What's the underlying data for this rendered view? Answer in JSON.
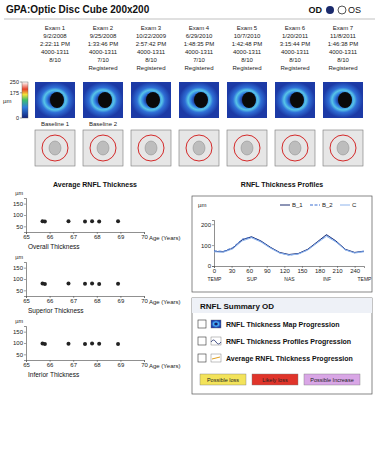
{
  "header": {
    "title": "GPA:Optic Disc Cube 200x200",
    "od": "OD",
    "os": "OS"
  },
  "exams": [
    {
      "label": "Exam 1",
      "date": "9/2/2008",
      "time": "2:22:11 PM",
      "id": "4000-1311",
      "signal": "8/10"
    },
    {
      "label": "Exam 2",
      "date": "9/25/2008",
      "time": "1:33:46 PM",
      "id": "4000-1311",
      "signal": "7/10",
      "status": "Registered"
    },
    {
      "label": "Exam 3",
      "date": "10/22/2009",
      "time": "2:57:42 PM",
      "id": "4000-1311",
      "signal": "8/10",
      "status": "Registered"
    },
    {
      "label": "Exam 4",
      "date": "6/29/2010",
      "time": "1:48:35 PM",
      "id": "4000-1311",
      "signal": "7/10",
      "status": "Registered"
    },
    {
      "label": "Exam 5",
      "date": "10/7/2010",
      "time": "1:42:48 PM",
      "id": "4000-1311",
      "signal": "8/10",
      "status": "Registered"
    },
    {
      "label": "Exam 6",
      "date": "1/20/2011",
      "time": "3:15:44 PM",
      "id": "4000-1311",
      "signal": "8/10",
      "status": "Registered"
    },
    {
      "label": "Exam 7",
      "date": "11/8/2011",
      "time": "1:46:38 PM",
      "id": "4000-1311",
      "signal": "8/10",
      "status": "Registered"
    }
  ],
  "thickness_map": {
    "unit": "µm",
    "colorbar_range": [
      0,
      250
    ],
    "colorbar_ticks": [
      0,
      175,
      250
    ],
    "baseline_labels": [
      "Baseline 1",
      "Baseline 2"
    ]
  },
  "average_heading": "Average RNFL Thickness",
  "chart_data": [
    {
      "type": "scatter",
      "title": "Overall Thickness",
      "x_label": "Age (Years)",
      "y_label": "µm",
      "x": [
        65.7,
        65.8,
        66.8,
        67.5,
        67.8,
        68.1,
        68.9
      ],
      "values": [
        72,
        71,
        72,
        71,
        72,
        71,
        72
      ],
      "xlim": [
        65,
        70
      ],
      "xticks": [
        65,
        66,
        67,
        68,
        69,
        70
      ],
      "ylim": [
        25,
        175
      ],
      "yticks": [
        50,
        100,
        150
      ],
      "color": "#222222",
      "marker": "circle",
      "grid": false
    },
    {
      "type": "scatter",
      "title": "Superior Thickness",
      "x_label": "Age (Years)",
      "y_label": "µm",
      "x": [
        65.7,
        65.8,
        66.8,
        67.5,
        67.8,
        68.1,
        68.9
      ],
      "values": [
        80,
        78,
        80,
        79,
        80,
        78,
        79
      ],
      "xlim": [
        65,
        70
      ],
      "xticks": [
        65,
        66,
        67,
        68,
        69,
        70
      ],
      "ylim": [
        25,
        175
      ],
      "yticks": [
        50,
        100,
        150
      ],
      "color": "#222222",
      "marker": "circle",
      "grid": false
    },
    {
      "type": "scatter",
      "title": "Inferior Thickness",
      "x_label": "Age (Years)",
      "y_label": "µm",
      "x": [
        65.7,
        65.8,
        66.8,
        67.5,
        67.8,
        68.1,
        68.9
      ],
      "values": [
        98,
        96,
        97,
        96,
        98,
        97,
        96
      ],
      "xlim": [
        65,
        70
      ],
      "xticks": [
        65,
        66,
        67,
        68,
        69,
        70
      ],
      "ylim": [
        25,
        175
      ],
      "yticks": [
        50,
        100,
        150
      ],
      "color": "#222222",
      "marker": "circle",
      "grid": false
    },
    {
      "type": "line",
      "title": "RNFL Thickness Profiles",
      "y_label": "µm",
      "x": [
        0,
        16,
        32,
        48,
        64,
        80,
        96,
        112,
        128,
        144,
        160,
        176,
        192,
        208,
        224,
        240,
        256
      ],
      "series": [
        {
          "name": "B_1",
          "color": "#1a2a6c",
          "line_style": "solid",
          "values": [
            70,
            68,
            85,
            125,
            140,
            120,
            90,
            65,
            55,
            60,
            80,
            115,
            150,
            120,
            80,
            65,
            70
          ]
        },
        {
          "name": "B_2",
          "color": "#3b6fd1",
          "line_style": "dashed",
          "values": [
            72,
            70,
            88,
            128,
            138,
            118,
            88,
            63,
            52,
            58,
            78,
            112,
            146,
            118,
            78,
            63,
            72
          ]
        },
        {
          "name": "C",
          "color": "#8fb4ec",
          "line_style": "solid",
          "values": [
            68,
            66,
            82,
            120,
            135,
            115,
            86,
            62,
            52,
            57,
            76,
            110,
            142,
            115,
            77,
            62,
            68
          ]
        }
      ],
      "xlim": [
        0,
        256
      ],
      "xticks": [
        0,
        30,
        60,
        90,
        120,
        150,
        180,
        210,
        240
      ],
      "x_sector_ticks": [
        {
          "value": 0,
          "label": "TEMP"
        },
        {
          "value": 64,
          "label": "SUP"
        },
        {
          "value": 128,
          "label": "NAS"
        },
        {
          "value": 192,
          "label": "INF"
        },
        {
          "value": 256,
          "label": "TEMP"
        }
      ],
      "ylim": [
        0,
        220
      ],
      "yticks": [
        0,
        100,
        200
      ],
      "legend": "upper right",
      "grid": false
    }
  ],
  "summary": {
    "title": "RNFL Summary OD",
    "items": [
      "RNFL Thickness Map Progression",
      "RNFL Thickness Profiles Progression",
      "Average RNFL Thickness Progression"
    ],
    "legend": [
      {
        "label": "Possible loss",
        "color": "#f3e35a"
      },
      {
        "label": "Likely loss",
        "color": "#e0342a"
      },
      {
        "label": "Possible Increase",
        "color": "#d9a6e6"
      }
    ]
  }
}
